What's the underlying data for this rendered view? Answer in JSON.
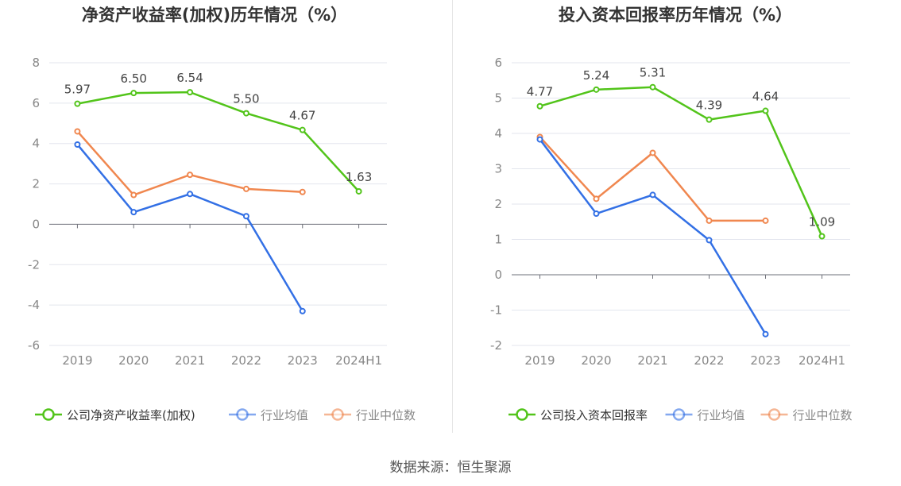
{
  "source": "数据来源：恒生聚源",
  "chart_data": [
    {
      "type": "line",
      "title": "净资产收益率(加权)历年情况（%）",
      "categories": [
        "2019",
        "2020",
        "2021",
        "2022",
        "2023",
        "2024H1"
      ],
      "ylim": [
        -6,
        8
      ],
      "yticks": [
        -6,
        -4,
        -2,
        0,
        2,
        4,
        6,
        8
      ],
      "legend_position": "bottom",
      "series": [
        {
          "name": "公司净资产收益率(加权)",
          "color": "#52c41a",
          "labels": true,
          "values": [
            5.97,
            6.5,
            6.54,
            5.5,
            4.67,
            1.63
          ]
        },
        {
          "name": "行业均值",
          "color": "#3370e5",
          "labels": false,
          "values": [
            3.95,
            0.6,
            1.5,
            0.4,
            -4.3,
            null
          ]
        },
        {
          "name": "行业中位数",
          "color": "#f0874f",
          "labels": false,
          "values": [
            4.6,
            1.45,
            2.45,
            1.75,
            1.6,
            null
          ]
        }
      ]
    },
    {
      "type": "line",
      "title": "投入资本回报率历年情况（%）",
      "categories": [
        "2019",
        "2020",
        "2021",
        "2022",
        "2023",
        "2024H1"
      ],
      "ylim": [
        -2,
        6
      ],
      "yticks": [
        -2,
        -1,
        0,
        1,
        2,
        3,
        4,
        5,
        6
      ],
      "legend_position": "bottom",
      "series": [
        {
          "name": "公司投入资本回报率",
          "color": "#52c41a",
          "labels": true,
          "values": [
            4.77,
            5.24,
            5.31,
            4.39,
            4.64,
            1.09
          ]
        },
        {
          "name": "行业均值",
          "color": "#3370e5",
          "labels": false,
          "values": [
            3.83,
            1.73,
            2.26,
            0.98,
            -1.68,
            null
          ]
        },
        {
          "name": "行业中位数",
          "color": "#f0874f",
          "labels": false,
          "values": [
            3.9,
            2.15,
            3.45,
            1.53,
            1.53,
            null
          ]
        }
      ]
    }
  ]
}
